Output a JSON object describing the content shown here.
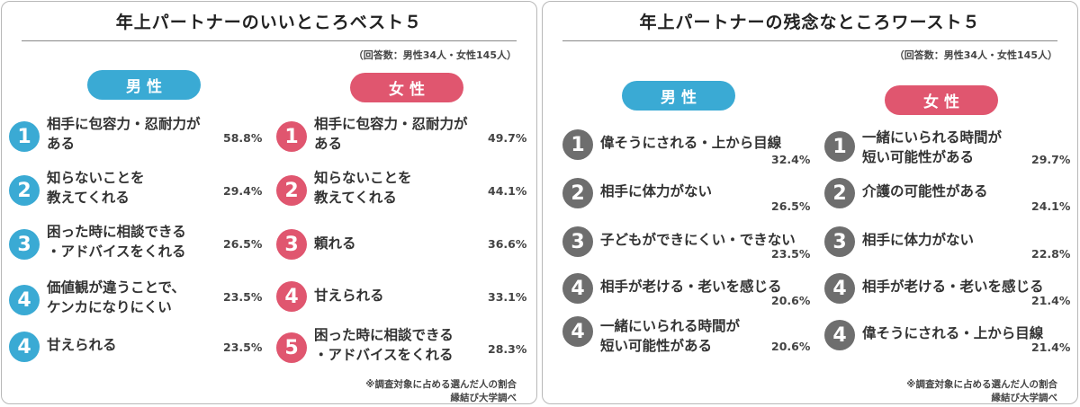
{
  "colors": {
    "male": "#3aaad4",
    "female": "#e0566f",
    "worst_badge": "#6e6e6e"
  },
  "best": {
    "title": "年上パートナーのいいところベスト５",
    "respondents": "（回答数：男性34人・女性145人）",
    "male_label": "男性",
    "female_label": "女性",
    "male": [
      {
        "rank": "1",
        "text": "相手に包容力・忍耐力が\nある",
        "pct": "58.8%"
      },
      {
        "rank": "2",
        "text": "知らないことを\n教えてくれる",
        "pct": "29.4%"
      },
      {
        "rank": "3",
        "text": "困った時に相談できる\n・アドバイスをくれる",
        "pct": "26.5%"
      },
      {
        "rank": "4",
        "text": "価値観が違うことで、\nケンカになりにくい",
        "pct": "23.5%"
      },
      {
        "rank": "4",
        "text": "甘えられる",
        "pct": "23.5%"
      }
    ],
    "female": [
      {
        "rank": "1",
        "text": "相手に包容力・忍耐力が\nある",
        "pct": "49.7%"
      },
      {
        "rank": "2",
        "text": "知らないことを\n教えてくれる",
        "pct": "44.1%"
      },
      {
        "rank": "3",
        "text": "頼れる",
        "pct": "36.6%"
      },
      {
        "rank": "4",
        "text": "甘えられる",
        "pct": "33.1%"
      },
      {
        "rank": "5",
        "text": "困った時に相談できる\n・アドバイスをくれる",
        "pct": "28.3%"
      }
    ],
    "note": "※調査対象に占める選んだ人の割合",
    "source": "縁結び大学調べ"
  },
  "worst": {
    "title": "年上パートナーの残念なところワースト５",
    "respondents": "（回答数：男性34人・女性145人）",
    "male_label": "男性",
    "female_label": "女性",
    "male": [
      {
        "rank": "1",
        "text": "偉そうにされる・上から目線",
        "pct": "32.4%"
      },
      {
        "rank": "2",
        "text": "相手に体力がない",
        "pct": "26.5%"
      },
      {
        "rank": "3",
        "text": "子どもができにくい・できない",
        "pct": "23.5%"
      },
      {
        "rank": "4",
        "text": "相手が老ける・老いを感じる",
        "pct": "20.6%"
      },
      {
        "rank": "4",
        "text": "一緒にいられる時間が\n短い可能性がある",
        "pct": "20.6%"
      }
    ],
    "female": [
      {
        "rank": "1",
        "text": "一緒にいられる時間が\n短い可能性がある",
        "pct": "29.7%"
      },
      {
        "rank": "2",
        "text": "介護の可能性がある",
        "pct": "24.1%"
      },
      {
        "rank": "3",
        "text": "相手に体力がない",
        "pct": "22.8%"
      },
      {
        "rank": "4",
        "text": "相手が老ける・老いを感じる",
        "pct": "21.4%"
      },
      {
        "rank": "4",
        "text": "偉そうにされる・上から目線",
        "pct": "21.4%"
      }
    ],
    "note": "※調査対象に占める選んだ人の割合",
    "source": "縁結び大学調べ"
  },
  "chart_data": [
    {
      "type": "table",
      "title": "年上パートナーのいいところベスト５",
      "series": [
        {
          "name": "男性",
          "categories": [
            "相手に包容力・忍耐力がある",
            "知らないことを教えてくれる",
            "困った時に相談できる・アドバイスをくれる",
            "価値観が違うことで、ケンカになりにくい",
            "甘えられる"
          ],
          "values": [
            58.8,
            29.4,
            26.5,
            23.5,
            23.5
          ]
        },
        {
          "name": "女性",
          "categories": [
            "相手に包容力・忍耐力がある",
            "知らないことを教えてくれる",
            "頼れる",
            "甘えられる",
            "困った時に相談できる・アドバイスをくれる"
          ],
          "values": [
            49.7,
            44.1,
            36.6,
            33.1,
            28.3
          ]
        }
      ]
    },
    {
      "type": "table",
      "title": "年上パートナーの残念なところワースト５",
      "series": [
        {
          "name": "男性",
          "categories": [
            "偉そうにされる・上から目線",
            "相手に体力がない",
            "子どもができにくい・できない",
            "相手が老ける・老いを感じる",
            "一緒にいられる時間が短い可能性がある"
          ],
          "values": [
            32.4,
            26.5,
            23.5,
            20.6,
            20.6
          ]
        },
        {
          "name": "女性",
          "categories": [
            "一緒にいられる時間が短い可能性がある",
            "介護の可能性がある",
            "相手に体力がない",
            "相手が老ける・老いを感じる",
            "偉そうにされる・上から目線"
          ],
          "values": [
            29.7,
            24.1,
            22.8,
            21.4,
            21.4
          ]
        }
      ]
    }
  ]
}
